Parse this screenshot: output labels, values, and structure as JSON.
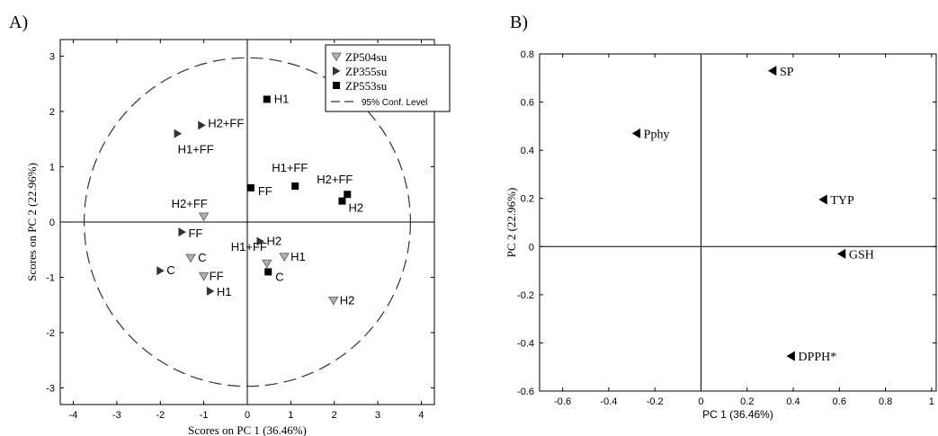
{
  "panel_a_label": "A)",
  "panel_b_label": "B)",
  "chart_data": [
    {
      "type": "scatter",
      "xlabel": "Scores on PC 1 (36.46%)",
      "ylabel": "Scores on PC 2 (22.96%)",
      "xlim": [
        -4.3,
        4.3
      ],
      "ylim": [
        -3.3,
        3.3
      ],
      "xticks": [
        -4,
        -3,
        -2,
        -1,
        0,
        1,
        2,
        3,
        4
      ],
      "yticks": [
        -3,
        -2,
        -1,
        0,
        1,
        2,
        3
      ],
      "legend_position": "top-right",
      "confidence_ellipse": {
        "label": "95% Conf. Level",
        "rx": 3.75,
        "ry": 2.97
      },
      "series": [
        {
          "name": "ZP504su",
          "marker": "triangle-down",
          "color": "#b0b0b0",
          "points": [
            {
              "x": -1.0,
              "y": 0.1,
              "label": "H2+FF"
            },
            {
              "x": -1.3,
              "y": -0.65,
              "label": "C"
            },
            {
              "x": -1.0,
              "y": -0.98,
              "label": "FF"
            },
            {
              "x": 0.45,
              "y": -0.75,
              "label": "H1+FF"
            },
            {
              "x": 0.85,
              "y": -0.63,
              "label": "H1"
            },
            {
              "x": 1.98,
              "y": -1.42,
              "label": "H2"
            }
          ]
        },
        {
          "name": "ZP355su",
          "marker": "triangle-right",
          "color": "#333333",
          "points": [
            {
              "x": -1.6,
              "y": 1.6,
              "label": "H1+FF"
            },
            {
              "x": -1.05,
              "y": 1.75,
              "label": "H2+FF"
            },
            {
              "x": -1.5,
              "y": -0.18,
              "label": "FF"
            },
            {
              "x": -2.0,
              "y": -0.88,
              "label": "C"
            },
            {
              "x": -0.85,
              "y": -1.25,
              "label": "H1"
            },
            {
              "x": 0.3,
              "y": -0.35,
              "label": "H2"
            }
          ]
        },
        {
          "name": "ZP553su",
          "marker": "square",
          "color": "#000000",
          "points": [
            {
              "x": 0.45,
              "y": 2.22,
              "label": "H1"
            },
            {
              "x": 0.08,
              "y": 0.62,
              "label": "FF"
            },
            {
              "x": 1.1,
              "y": 0.65,
              "label": "H1+FF"
            },
            {
              "x": 2.3,
              "y": 0.5,
              "label": "H2+FF"
            },
            {
              "x": 2.18,
              "y": 0.38,
              "label": "H2"
            },
            {
              "x": 0.48,
              "y": -0.9,
              "label": "C"
            }
          ]
        }
      ]
    },
    {
      "type": "scatter",
      "xlabel": "PC 1 (36.46%)",
      "ylabel": "PC 2 (22.96%)",
      "xlim": [
        -0.7,
        1.02
      ],
      "ylim": [
        -0.6,
        0.8
      ],
      "xticks": [
        -0.6,
        -0.4,
        -0.2,
        0,
        0.2,
        0.4,
        0.6,
        0.8,
        1
      ],
      "xtick_labels": [
        "-0.6",
        "-0.4",
        "-0.2",
        "0",
        "0.2",
        "0.4",
        "0.6",
        "0.8",
        "1"
      ],
      "yticks": [
        -0.6,
        -0.4,
        -0.2,
        0,
        0.2,
        0.4,
        0.6,
        0.8
      ],
      "ytick_labels": [
        "-0.6",
        "-0.4",
        "-0.2",
        "0",
        "0.2",
        "0.4",
        "0.6",
        "0.8"
      ],
      "marker": "triangle-left",
      "points": [
        {
          "x": 0.31,
          "y": 0.73,
          "label": "SP"
        },
        {
          "x": -0.28,
          "y": 0.47,
          "label": "Pphy"
        },
        {
          "x": 0.53,
          "y": 0.195,
          "label": "TYP"
        },
        {
          "x": 0.61,
          "y": -0.03,
          "label": "GSH"
        },
        {
          "x": 0.39,
          "y": -0.455,
          "label": "DPPH*"
        }
      ]
    }
  ]
}
